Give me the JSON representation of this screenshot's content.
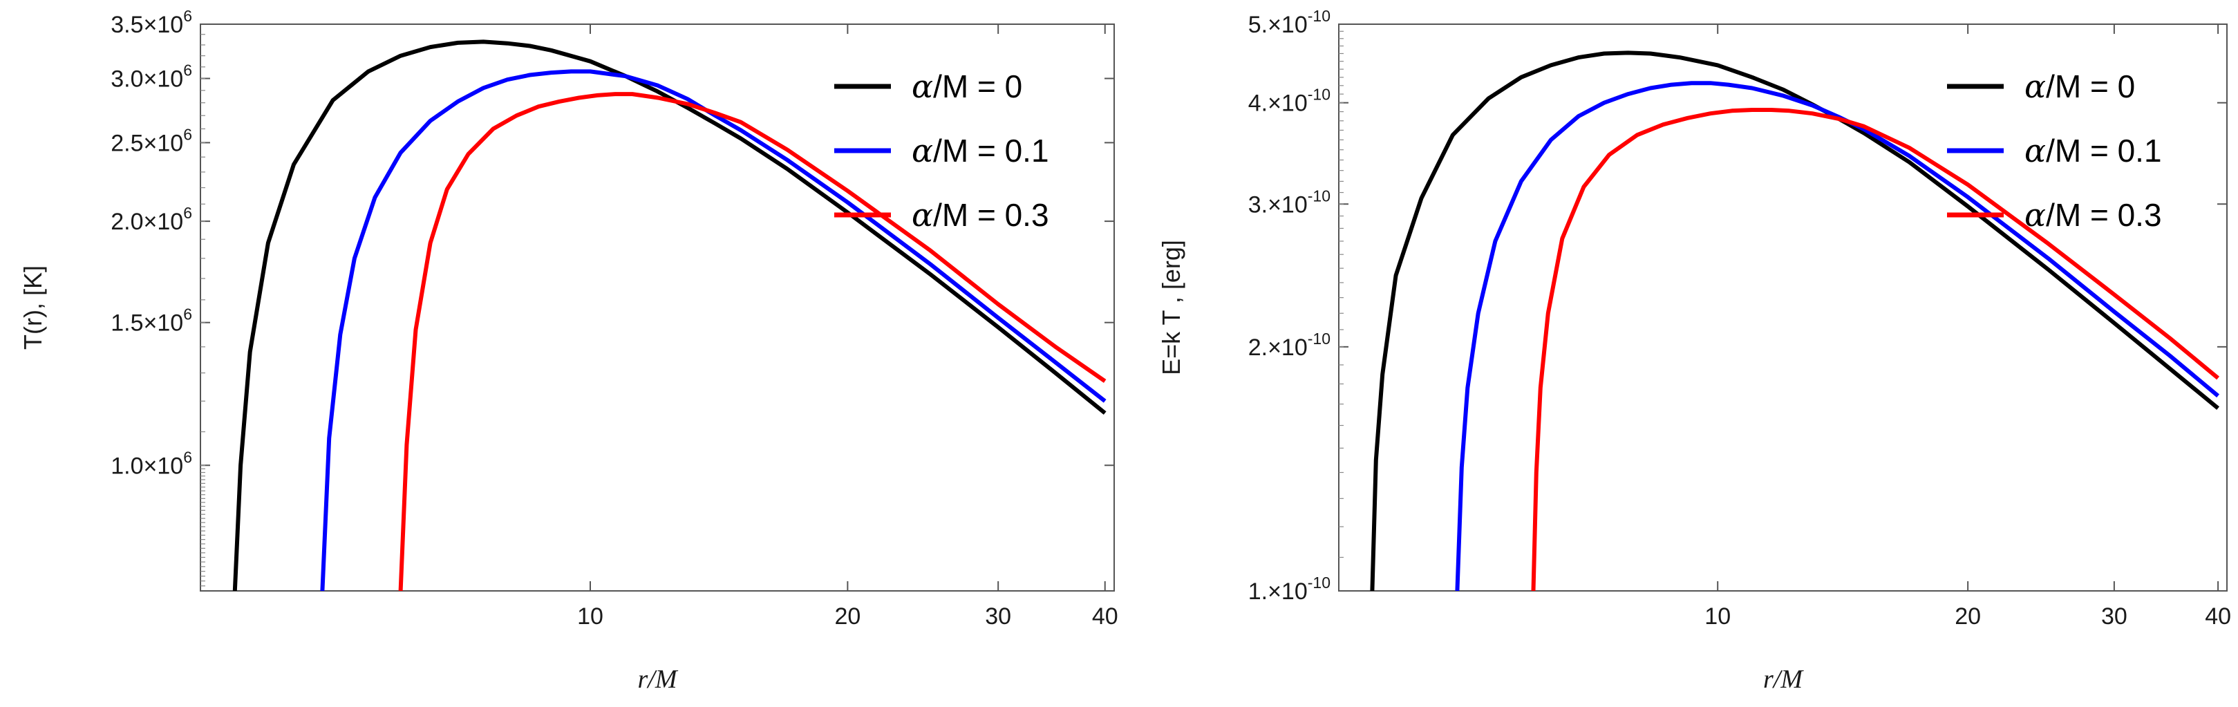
{
  "chart_data": [
    {
      "type": "line",
      "title": "",
      "xlabel": "r/M",
      "ylabel": "T(r),  [K]",
      "x_scale": "log",
      "y_scale": "log",
      "xlim": [
        3.5,
        41
      ],
      "ylim": [
        700000,
        3500000
      ],
      "x_ticks": [
        {
          "value": 10,
          "label": "10"
        },
        {
          "value": 20,
          "label": "20"
        },
        {
          "value": 30,
          "label": "30"
        },
        {
          "value": 40,
          "label": "40"
        }
      ],
      "y_ticks": [
        {
          "value": 1000000,
          "mantissa": "1.0",
          "times": "×10",
          "exp": "6"
        },
        {
          "value": 1500000,
          "mantissa": "1.5",
          "times": "×10",
          "exp": "6"
        },
        {
          "value": 2000000,
          "mantissa": "2.0",
          "times": "×10",
          "exp": "6"
        },
        {
          "value": 2500000,
          "mantissa": "2.5",
          "times": "×10",
          "exp": "6"
        },
        {
          "value": 3000000,
          "mantissa": "3.0",
          "times": "×10",
          "exp": "6"
        },
        {
          "value": 3500000,
          "mantissa": "3.5",
          "times": "×10",
          "exp": "6"
        }
      ],
      "legend": "top-right",
      "series": [
        {
          "name": "α/M = 0",
          "alpha_symbol": "α",
          "legend_suffix": "/M = 0",
          "color": "#000000",
          "x": [
            3.84,
            3.9,
            4.0,
            4.2,
            4.5,
            5.0,
            5.5,
            6.0,
            6.5,
            7.0,
            7.5,
            8.0,
            8.5,
            9.0,
            10,
            11,
            12,
            13,
            14,
            15,
            17,
            20,
            25,
            30,
            35,
            40
          ],
          "y": [
            700000,
            1000000,
            1380000,
            1880000,
            2350000,
            2820000,
            3060000,
            3200000,
            3280000,
            3320000,
            3330000,
            3315000,
            3290000,
            3250000,
            3150000,
            3020000,
            2890000,
            2760000,
            2640000,
            2530000,
            2320000,
            2050000,
            1720000,
            1480000,
            1300000,
            1160000
          ]
        },
        {
          "name": "α/M = 0.1",
          "alpha_symbol": "α",
          "legend_suffix": "/M = 0.1",
          "color": "#0000ff",
          "x": [
            4.86,
            4.95,
            5.1,
            5.3,
            5.6,
            6.0,
            6.5,
            7.0,
            7.5,
            8.0,
            8.5,
            9.0,
            9.5,
            10,
            11,
            12,
            13,
            14,
            15,
            17,
            20,
            25,
            30,
            35,
            40
          ],
          "y": [
            700000,
            1080000,
            1450000,
            1800000,
            2140000,
            2430000,
            2660000,
            2810000,
            2920000,
            2990000,
            3030000,
            3050000,
            3060000,
            3060000,
            3020000,
            2940000,
            2830000,
            2700000,
            2590000,
            2380000,
            2110000,
            1770000,
            1520000,
            1340000,
            1200000
          ]
        },
        {
          "name": "α/M = 0.3",
          "alpha_symbol": "α",
          "legend_suffix": "/M = 0.3",
          "color": "#ff0000",
          "x": [
            6.0,
            6.1,
            6.25,
            6.5,
            6.8,
            7.2,
            7.7,
            8.2,
            8.7,
            9.2,
            9.7,
            10.2,
            10.7,
            11.2,
            12,
            13,
            14,
            15,
            17,
            20,
            25,
            30,
            35,
            40
          ],
          "y": [
            700000,
            1060000,
            1470000,
            1880000,
            2190000,
            2420000,
            2600000,
            2700000,
            2770000,
            2810000,
            2840000,
            2860000,
            2870000,
            2870000,
            2840000,
            2790000,
            2720000,
            2650000,
            2450000,
            2180000,
            1840000,
            1580000,
            1400000,
            1270000
          ]
        }
      ]
    },
    {
      "type": "line",
      "title": "",
      "xlabel": "r/M",
      "ylabel": "E=k T ,  [erg]",
      "x_scale": "log",
      "y_scale": "log",
      "xlim": [
        3.5,
        41
      ],
      "ylim": [
        1e-10,
        5e-10
      ],
      "x_ticks": [
        {
          "value": 10,
          "label": "10"
        },
        {
          "value": 20,
          "label": "20"
        },
        {
          "value": 30,
          "label": "30"
        },
        {
          "value": 40,
          "label": "40"
        }
      ],
      "y_ticks": [
        {
          "value": 1e-10,
          "mantissa": "1.",
          "times": "×10",
          "exp": "-10"
        },
        {
          "value": 2e-10,
          "mantissa": "2.",
          "times": "×10",
          "exp": "-10"
        },
        {
          "value": 3e-10,
          "mantissa": "3.",
          "times": "×10",
          "exp": "-10"
        },
        {
          "value": 4e-10,
          "mantissa": "4.",
          "times": "×10",
          "exp": "-10"
        },
        {
          "value": 5e-10,
          "mantissa": "5.",
          "times": "×10",
          "exp": "-10"
        }
      ],
      "legend": "top-right",
      "series": [
        {
          "name": "α/M = 0",
          "alpha_symbol": "α",
          "legend_suffix": "/M = 0",
          "color": "#000000",
          "x": [
            3.84,
            3.88,
            3.95,
            4.1,
            4.4,
            4.8,
            5.3,
            5.8,
            6.3,
            6.8,
            7.3,
            7.8,
            8.3,
            9.0,
            10,
            11,
            12,
            13,
            14,
            15,
            17,
            20,
            25,
            30,
            35,
            40
          ],
          "y": [
            1e-10,
            1.45e-10,
            1.85e-10,
            2.45e-10,
            3.05e-10,
            3.65e-10,
            4.05e-10,
            4.3e-10,
            4.45e-10,
            4.55e-10,
            4.6e-10,
            4.61e-10,
            4.6e-10,
            4.55e-10,
            4.45e-10,
            4.3e-10,
            4.15e-10,
            3.98e-10,
            3.82e-10,
            3.67e-10,
            3.38e-10,
            2.98e-10,
            2.49e-10,
            2.14e-10,
            1.88e-10,
            1.68e-10
          ]
        },
        {
          "name": "α/M = 0.1",
          "alpha_symbol": "α",
          "legend_suffix": "/M = 0.1",
          "color": "#0000ff",
          "x": [
            4.86,
            4.92,
            5.0,
            5.15,
            5.4,
            5.8,
            6.3,
            6.8,
            7.3,
            7.8,
            8.3,
            8.8,
            9.3,
            9.8,
            10.3,
            11,
            12,
            13,
            14,
            15,
            17,
            20,
            25,
            30,
            35,
            40
          ],
          "y": [
            1e-10,
            1.42e-10,
            1.78e-10,
            2.2e-10,
            2.7e-10,
            3.2e-10,
            3.6e-10,
            3.85e-10,
            4e-10,
            4.1e-10,
            4.17e-10,
            4.21e-10,
            4.23e-10,
            4.23e-10,
            4.21e-10,
            4.17e-10,
            4.08e-10,
            3.97e-10,
            3.84e-10,
            3.71e-10,
            3.44e-10,
            3.06e-10,
            2.57e-10,
            2.21e-10,
            1.95e-10,
            1.74e-10
          ]
        },
        {
          "name": "α/M = 0.3",
          "alpha_symbol": "α",
          "legend_suffix": "/M = 0.3",
          "color": "#ff0000",
          "x": [
            6.0,
            6.05,
            6.12,
            6.25,
            6.5,
            6.9,
            7.4,
            8.0,
            8.6,
            9.2,
            9.8,
            10.4,
            11.0,
            11.6,
            12.2,
            13,
            14,
            15,
            17,
            20,
            25,
            30,
            35,
            40
          ],
          "y": [
            1e-10,
            1.4e-10,
            1.78e-10,
            2.2e-10,
            2.72e-10,
            3.15e-10,
            3.45e-10,
            3.65e-10,
            3.76e-10,
            3.83e-10,
            3.88e-10,
            3.91e-10,
            3.92e-10,
            3.92e-10,
            3.91e-10,
            3.88e-10,
            3.82e-10,
            3.74e-10,
            3.52e-10,
            3.17e-10,
            2.68e-10,
            2.32e-10,
            2.05e-10,
            1.83e-10
          ]
        }
      ]
    }
  ]
}
